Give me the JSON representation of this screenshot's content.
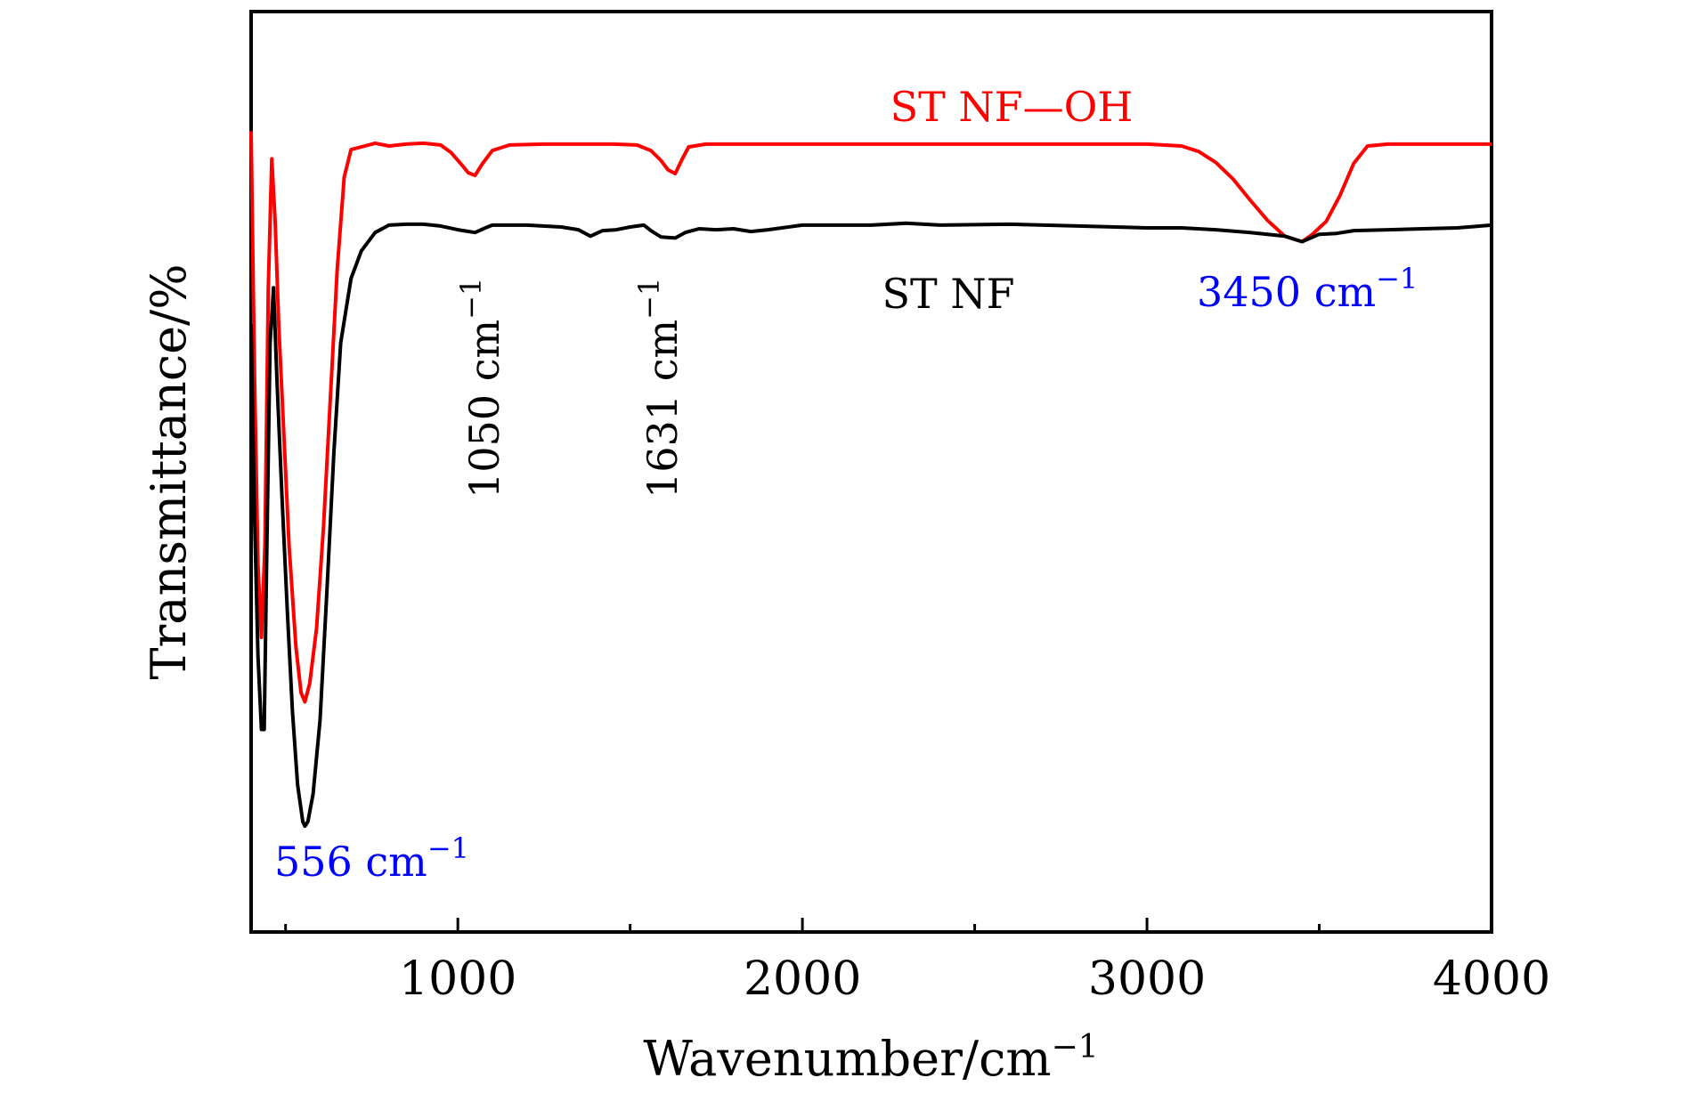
{
  "chart_data": {
    "type": "line",
    "title": "",
    "xlabel": "Wavenumber/cm",
    "xlabel_sup": "−1",
    "ylabel": "Transmittance/%",
    "xlim": [
      400,
      4000
    ],
    "ylim": [
      0,
      100
    ],
    "y_ticks_shown": false,
    "x_ticks": [
      1000,
      2000,
      3000,
      4000
    ],
    "x_tick_labels": [
      "1000",
      "2000",
      "3000",
      "4000"
    ],
    "x_minor_ticks": [
      500,
      1500,
      2500,
      3500
    ],
    "grid": false,
    "legend": "none",
    "series": [
      {
        "name": "ST NF—OH",
        "color": "#ff0000",
        "points": [
          [
            400,
            87
          ],
          [
            410,
            60
          ],
          [
            420,
            40
          ],
          [
            430,
            32
          ],
          [
            440,
            42
          ],
          [
            450,
            70
          ],
          [
            460,
            84
          ],
          [
            470,
            77
          ],
          [
            480,
            66
          ],
          [
            495,
            54
          ],
          [
            510,
            42
          ],
          [
            530,
            31
          ],
          [
            545,
            26
          ],
          [
            556,
            25
          ],
          [
            570,
            27
          ],
          [
            590,
            33
          ],
          [
            610,
            44
          ],
          [
            630,
            58
          ],
          [
            650,
            72
          ],
          [
            670,
            82
          ],
          [
            690,
            85
          ],
          [
            720,
            85.3
          ],
          [
            760,
            85.7
          ],
          [
            800,
            85.4
          ],
          [
            850,
            85.6
          ],
          [
            900,
            85.7
          ],
          [
            950,
            85.5
          ],
          [
            980,
            84.7
          ],
          [
            1010,
            83.4
          ],
          [
            1030,
            82.5
          ],
          [
            1050,
            82.2
          ],
          [
            1070,
            83.4
          ],
          [
            1100,
            84.9
          ],
          [
            1150,
            85.5
          ],
          [
            1250,
            85.6
          ],
          [
            1350,
            85.6
          ],
          [
            1450,
            85.6
          ],
          [
            1520,
            85.5
          ],
          [
            1560,
            84.9
          ],
          [
            1590,
            83.8
          ],
          [
            1610,
            82.8
          ],
          [
            1631,
            82.4
          ],
          [
            1650,
            83.9
          ],
          [
            1670,
            85.3
          ],
          [
            1720,
            85.6
          ],
          [
            1900,
            85.6
          ],
          [
            2200,
            85.6
          ],
          [
            2500,
            85.6
          ],
          [
            2800,
            85.6
          ],
          [
            3000,
            85.6
          ],
          [
            3100,
            85.4
          ],
          [
            3150,
            84.8
          ],
          [
            3200,
            83.6
          ],
          [
            3250,
            81.8
          ],
          [
            3300,
            79.5
          ],
          [
            3350,
            77.3
          ],
          [
            3400,
            75.6
          ],
          [
            3450,
            75.0
          ],
          [
            3480,
            75.8
          ],
          [
            3520,
            77.2
          ],
          [
            3560,
            80.0
          ],
          [
            3600,
            83.5
          ],
          [
            3640,
            85.4
          ],
          [
            3700,
            85.6
          ],
          [
            3850,
            85.6
          ],
          [
            4000,
            85.6
          ]
        ]
      },
      {
        "name": "ST NF",
        "color": "#000000",
        "points": [
          [
            400,
            66
          ],
          [
            410,
            45
          ],
          [
            420,
            30
          ],
          [
            430,
            22
          ],
          [
            438,
            22
          ],
          [
            445,
            40
          ],
          [
            455,
            64
          ],
          [
            465,
            70
          ],
          [
            475,
            60
          ],
          [
            490,
            47
          ],
          [
            505,
            35
          ],
          [
            520,
            24
          ],
          [
            535,
            16
          ],
          [
            550,
            12
          ],
          [
            556,
            11.5
          ],
          [
            565,
            12
          ],
          [
            580,
            15
          ],
          [
            600,
            23
          ],
          [
            620,
            37
          ],
          [
            640,
            52
          ],
          [
            660,
            64
          ],
          [
            690,
            71
          ],
          [
            720,
            74
          ],
          [
            760,
            76
          ],
          [
            800,
            76.8
          ],
          [
            850,
            76.9
          ],
          [
            900,
            76.9
          ],
          [
            950,
            76.7
          ],
          [
            1000,
            76.3
          ],
          [
            1050,
            76.0
          ],
          [
            1080,
            76.5
          ],
          [
            1100,
            76.8
          ],
          [
            1200,
            76.8
          ],
          [
            1300,
            76.6
          ],
          [
            1350,
            76.3
          ],
          [
            1385,
            75.6
          ],
          [
            1420,
            76.2
          ],
          [
            1460,
            76.3
          ],
          [
            1500,
            76.6
          ],
          [
            1540,
            76.8
          ],
          [
            1560,
            76.2
          ],
          [
            1590,
            75.5
          ],
          [
            1631,
            75.4
          ],
          [
            1660,
            76.0
          ],
          [
            1700,
            76.4
          ],
          [
            1750,
            76.3
          ],
          [
            1800,
            76.4
          ],
          [
            1850,
            76.1
          ],
          [
            1900,
            76.3
          ],
          [
            2000,
            76.8
          ],
          [
            2200,
            76.8
          ],
          [
            2300,
            77.0
          ],
          [
            2400,
            76.8
          ],
          [
            2600,
            76.9
          ],
          [
            2800,
            76.7
          ],
          [
            3000,
            76.5
          ],
          [
            3100,
            76.5
          ],
          [
            3200,
            76.3
          ],
          [
            3300,
            76.0
          ],
          [
            3400,
            75.6
          ],
          [
            3450,
            75.0
          ],
          [
            3500,
            75.8
          ],
          [
            3550,
            75.9
          ],
          [
            3600,
            76.2
          ],
          [
            3700,
            76.3
          ],
          [
            3800,
            76.4
          ],
          [
            3900,
            76.5
          ],
          [
            4000,
            76.8
          ]
        ]
      }
    ],
    "annotations": [
      {
        "text": "ST NF—OH",
        "color": "#ff0000"
      },
      {
        "text": "ST NF",
        "color": "#000000"
      },
      {
        "text": "1050 cm",
        "sup": "−1",
        "color": "#000000",
        "orientation": "vertical"
      },
      {
        "text": "1631 cm",
        "sup": "−1",
        "color": "#000000",
        "orientation": "vertical"
      },
      {
        "text": "3450 cm",
        "sup": "−1",
        "color": "#0000ff"
      },
      {
        "text": "556 cm",
        "sup": "−1",
        "color": "#0000ff"
      }
    ]
  }
}
